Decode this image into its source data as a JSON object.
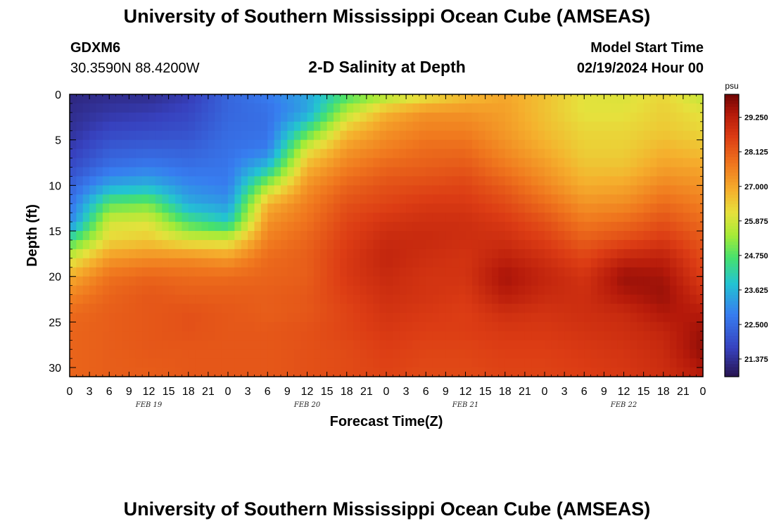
{
  "header": {
    "title": "University of Southern Mississippi Ocean Cube (AMSEAS)",
    "station": "GDXM6",
    "coords": "30.3590N  88.4200W",
    "subtitle": "2-D Salinity at Depth",
    "start_label": "Model Start Time",
    "start_value": "02/19/2024 Hour 00"
  },
  "footer": {
    "title": "University of Southern Mississippi Ocean Cube (AMSEAS)"
  },
  "chart_data": {
    "type": "heatmap",
    "title": "2-D Salinity at Depth",
    "xlabel": "Forecast Time(Z)",
    "ylabel": "Depth (ft)",
    "x_range_hours": [
      0,
      96
    ],
    "ylim": [
      0,
      31
    ],
    "x_tick_labels": [
      "0",
      "3",
      "6",
      "9",
      "12",
      "15",
      "18",
      "21",
      "0",
      "3",
      "6",
      "9",
      "12",
      "15",
      "18",
      "21",
      "0",
      "3",
      "6",
      "9",
      "12",
      "15",
      "18",
      "21",
      "0",
      "3",
      "6",
      "9",
      "12",
      "15",
      "18",
      "21",
      "0"
    ],
    "date_labels": [
      {
        "hour": 12,
        "text": "FEB 19"
      },
      {
        "hour": 36,
        "text": "FEB 20"
      },
      {
        "hour": 60,
        "text": "FEB 21"
      },
      {
        "hour": 84,
        "text": "FEB 22"
      }
    ],
    "y_ticks": [
      0,
      5,
      10,
      15,
      20,
      25,
      30
    ],
    "colorbar": {
      "unit": "psu",
      "min": 20.8,
      "max": 30.0,
      "ticks": [
        "29.250",
        "28.125",
        "27.000",
        "25.875",
        "24.750",
        "23.625",
        "22.500",
        "21.375"
      ]
    },
    "depths_ft": [
      0,
      2,
      4,
      6,
      8,
      10,
      12,
      14,
      16,
      18,
      20,
      22,
      24,
      26,
      28,
      31
    ],
    "hours": [
      0,
      6,
      12,
      18,
      24,
      30,
      36,
      42,
      48,
      54,
      60,
      66,
      72,
      78,
      84,
      90,
      96
    ],
    "salinity_psu": [
      [
        21.2,
        21.3,
        21.3,
        21.6,
        22.4,
        22.8,
        23.4,
        24.6,
        25.4,
        26.0,
        26.6,
        27.0,
        26.6,
        26.1,
        26.0,
        26.3,
        25.7
      ],
      [
        21.3,
        21.5,
        21.6,
        21.8,
        22.4,
        22.6,
        23.4,
        25.6,
        26.8,
        27.3,
        27.3,
        27.1,
        26.6,
        26.1,
        26.1,
        26.4,
        26.1
      ],
      [
        21.4,
        21.8,
        21.9,
        22.0,
        22.5,
        22.6,
        24.6,
        26.6,
        27.3,
        27.6,
        27.6,
        27.2,
        26.7,
        26.3,
        26.3,
        26.5,
        26.3
      ],
      [
        21.6,
        22.2,
        22.3,
        22.3,
        22.6,
        22.8,
        26.0,
        27.2,
        27.6,
        27.9,
        27.9,
        27.4,
        26.9,
        26.4,
        26.4,
        26.8,
        26.6
      ],
      [
        21.9,
        22.6,
        22.8,
        22.6,
        22.7,
        23.8,
        26.8,
        27.6,
        28.0,
        28.1,
        28.2,
        27.7,
        27.2,
        26.6,
        26.6,
        27.1,
        27.0
      ],
      [
        22.3,
        23.4,
        23.6,
        23.0,
        22.8,
        25.4,
        27.3,
        28.0,
        28.3,
        28.4,
        28.5,
        28.1,
        27.5,
        26.9,
        27.0,
        27.5,
        27.3
      ],
      [
        22.6,
        24.8,
        25.0,
        23.5,
        23.2,
        26.8,
        27.6,
        28.3,
        28.5,
        28.7,
        28.7,
        28.4,
        27.9,
        27.3,
        27.4,
        27.9,
        27.6
      ],
      [
        22.9,
        25.9,
        26.0,
        24.6,
        24.0,
        27.3,
        27.8,
        28.5,
        28.8,
        28.9,
        28.9,
        28.7,
        28.3,
        27.7,
        27.9,
        28.3,
        27.9
      ],
      [
        24.5,
        26.3,
        26.5,
        26.0,
        25.9,
        27.6,
        28.0,
        28.6,
        29.0,
        29.0,
        28.9,
        28.9,
        28.6,
        28.1,
        28.4,
        28.7,
        28.2
      ],
      [
        25.9,
        27.2,
        27.4,
        27.4,
        27.2,
        27.9,
        28.1,
        28.7,
        29.1,
        28.9,
        28.8,
        29.2,
        28.9,
        28.5,
        29.1,
        29.2,
        28.4
      ],
      [
        26.9,
        27.8,
        28.0,
        27.9,
        27.9,
        28.0,
        28.1,
        28.7,
        29.0,
        28.8,
        28.8,
        29.5,
        29.1,
        28.8,
        29.6,
        29.5,
        28.6
      ],
      [
        27.5,
        28.0,
        28.2,
        28.1,
        28.1,
        28.1,
        28.2,
        28.6,
        28.9,
        28.8,
        28.7,
        29.3,
        29.0,
        28.9,
        29.4,
        29.6,
        28.9
      ],
      [
        27.9,
        28.1,
        28.2,
        28.3,
        28.2,
        28.1,
        28.2,
        28.5,
        28.8,
        28.7,
        28.6,
        28.9,
        28.8,
        28.9,
        29.0,
        29.4,
        29.3
      ],
      [
        28.0,
        28.1,
        28.2,
        28.3,
        28.2,
        28.2,
        28.3,
        28.5,
        28.7,
        28.6,
        28.6,
        28.7,
        28.7,
        28.8,
        28.9,
        29.1,
        29.6
      ],
      [
        28.0,
        28.1,
        28.2,
        28.2,
        28.2,
        28.2,
        28.3,
        28.4,
        28.6,
        28.5,
        28.5,
        28.6,
        28.6,
        28.7,
        28.8,
        29.0,
        29.7
      ],
      [
        28.0,
        28.1,
        28.1,
        28.2,
        28.2,
        28.2,
        28.3,
        28.4,
        28.5,
        28.4,
        28.4,
        28.5,
        28.5,
        28.6,
        28.7,
        28.9,
        29.3
      ]
    ]
  }
}
